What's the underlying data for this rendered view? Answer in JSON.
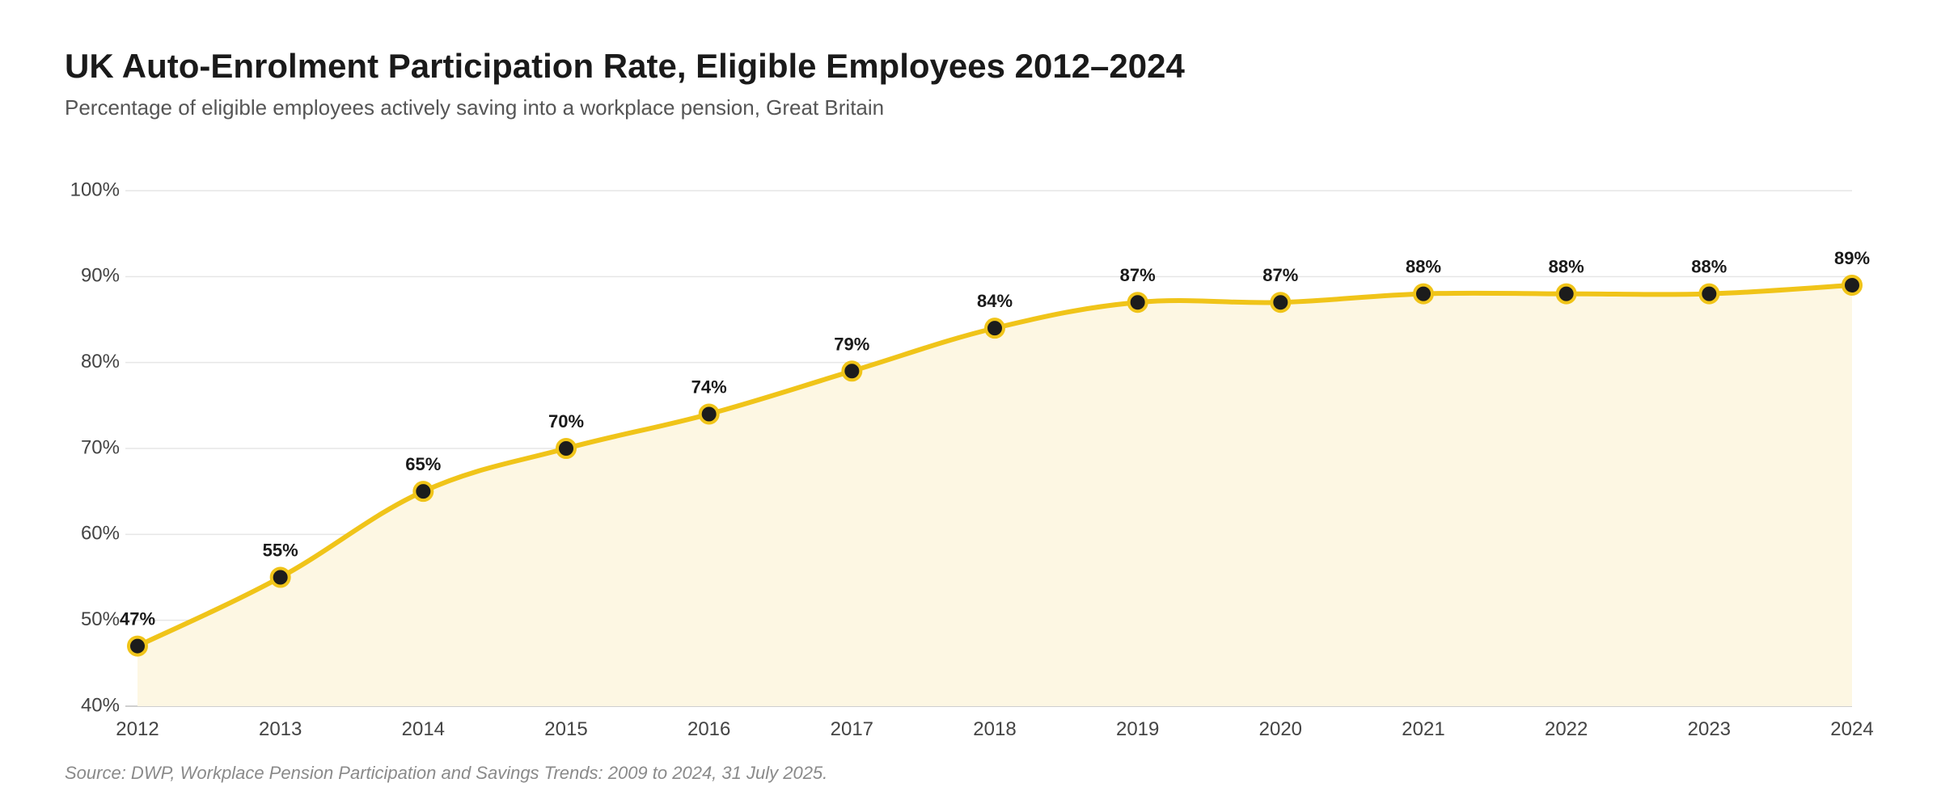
{
  "header": {
    "title": "UK Auto-Enrolment Participation Rate, Eligible Employees 2012–2024",
    "subtitle": "Percentage of eligible employees actively saving into a workplace pension, Great Britain"
  },
  "footer": {
    "source": "Source: DWP, Workplace Pension Participation and Savings Trends: 2009 to 2024, 31 July 2025."
  },
  "chart_data": {
    "type": "line",
    "title": "UK Auto-Enrolment Participation Rate, Eligible Employees 2012–2024",
    "subtitle": "Percentage of eligible employees actively saving into a workplace pension, Great Britain",
    "xlabel": "",
    "ylabel": "",
    "x": [
      "2012",
      "2013",
      "2014",
      "2015",
      "2016",
      "2017",
      "2018",
      "2019",
      "2020",
      "2021",
      "2022",
      "2023",
      "2024"
    ],
    "values": [
      47,
      55,
      65,
      70,
      74,
      79,
      84,
      87,
      87,
      88,
      88,
      88,
      89
    ],
    "data_labels": [
      "47%",
      "55%",
      "65%",
      "70%",
      "74%",
      "79%",
      "84%",
      "87%",
      "87%",
      "88%",
      "88%",
      "88%",
      "89%"
    ],
    "ylim": [
      40,
      100
    ],
    "y_ticks": [
      40,
      50,
      60,
      70,
      80,
      90,
      100
    ],
    "y_tick_labels": [
      "40%",
      "50%",
      "60%",
      "70%",
      "80%",
      "90%",
      "100%"
    ],
    "grid": true,
    "area_fill": true,
    "colors": {
      "line": "#f0c419",
      "area": "#fdf7e3",
      "marker_fill": "#1c1c1c",
      "marker_stroke": "#f0c419",
      "grid": "#e6e6e6"
    }
  }
}
